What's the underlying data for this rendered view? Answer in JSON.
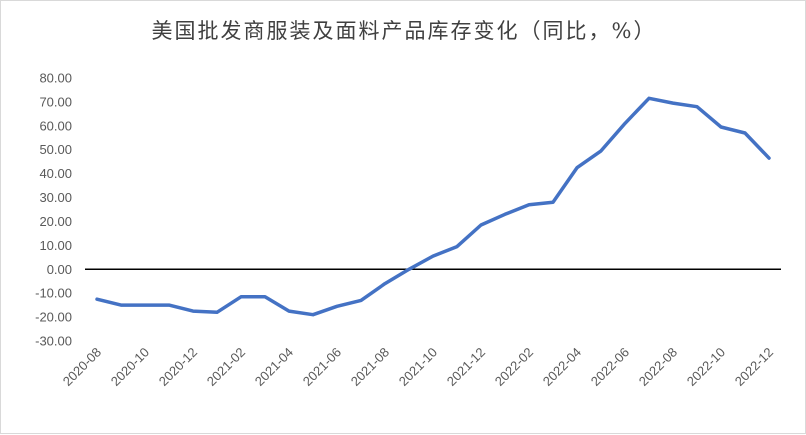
{
  "chart_data": {
    "type": "line",
    "title": "美国批发商服装及面料产品库存变化（同比，%）",
    "xlabel": "",
    "ylabel": "",
    "ylim": [
      -30,
      80
    ],
    "yticks": [
      "-30.00",
      "-20.00",
      "-10.00",
      "0.00",
      "10.00",
      "20.00",
      "30.00",
      "40.00",
      "50.00",
      "60.00",
      "70.00",
      "80.00"
    ],
    "xtick_labels": [
      "2020-08",
      "2020-10",
      "2020-12",
      "2021-02",
      "2021-04",
      "2021-06",
      "2021-08",
      "2021-10",
      "2021-12",
      "2022-02",
      "2022-04",
      "2022-06",
      "2022-08",
      "2022-10",
      "2022-12"
    ],
    "grid": false,
    "categories": [
      "2020-08",
      "2020-09",
      "2020-10",
      "2020-11",
      "2020-12",
      "2021-01",
      "2021-02",
      "2021-03",
      "2021-04",
      "2021-05",
      "2021-06",
      "2021-07",
      "2021-08",
      "2021-09",
      "2021-10",
      "2021-11",
      "2021-12",
      "2022-01",
      "2022-02",
      "2022-03",
      "2022-04",
      "2022-05",
      "2022-06",
      "2022-07",
      "2022-08",
      "2022-09",
      "2022-10",
      "2022-11",
      "2022-12"
    ],
    "series": [
      {
        "color": "#4472C4",
        "values": [
          -12.5,
          -15.0,
          -15.0,
          -15.0,
          -17.5,
          -18.0,
          -11.5,
          -11.5,
          -17.5,
          -19.0,
          -15.5,
          -13.0,
          -6.0,
          0.0,
          5.5,
          9.5,
          18.5,
          23.0,
          27.0,
          28.0,
          42.5,
          49.5,
          61.0,
          71.5,
          69.5,
          68.0,
          59.5,
          57.0,
          46.5
        ]
      }
    ],
    "zero_line_color": "#000000"
  }
}
